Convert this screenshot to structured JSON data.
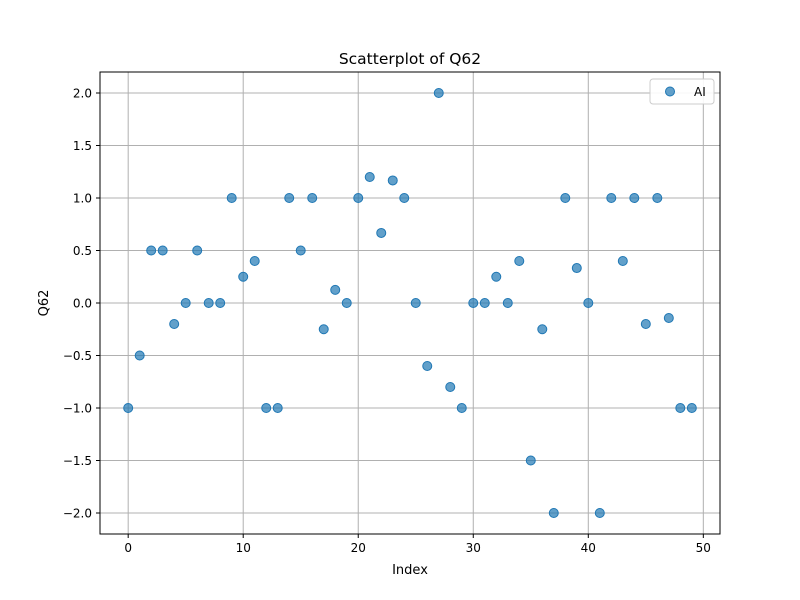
{
  "chart_data": {
    "type": "scatter",
    "title": "Scatterplot of Q62",
    "xlabel": "Index",
    "ylabel": "Q62",
    "xlim": [
      -2.45,
      51.45
    ],
    "ylim": [
      -2.2,
      2.2
    ],
    "grid": true,
    "legend_position": "top-right",
    "x_ticks": [
      0,
      10,
      20,
      30,
      40,
      50
    ],
    "y_ticks": [
      -2.0,
      -1.5,
      -1.0,
      -0.5,
      0.0,
      0.5,
      1.0,
      1.5,
      2.0
    ],
    "x_tick_labels": [
      "0",
      "10",
      "20",
      "30",
      "40",
      "50"
    ],
    "y_tick_labels": [
      "−2.0",
      "−1.5",
      "−1.0",
      "−0.5",
      "0.0",
      "0.5",
      "1.0",
      "1.5",
      "2.0"
    ],
    "marker_color": "#1f77b4",
    "series": [
      {
        "name": "AI",
        "x": [
          0,
          1,
          2,
          3,
          4,
          5,
          6,
          7,
          8,
          9,
          10,
          11,
          12,
          13,
          14,
          15,
          16,
          17,
          18,
          19,
          20,
          21,
          22,
          23,
          24,
          25,
          26,
          27,
          28,
          29,
          30,
          31,
          32,
          33,
          34,
          35,
          36,
          37,
          38,
          39,
          40,
          41,
          42,
          43,
          44,
          45,
          46,
          47,
          48,
          49
        ],
        "y": [
          -1.0,
          -0.5,
          0.5,
          0.5,
          -0.2,
          0.0,
          0.5,
          0.0,
          0.0,
          1.0,
          0.25,
          0.4,
          -1.0,
          -1.0,
          1.0,
          0.5,
          1.0,
          -0.25,
          0.125,
          0.0,
          1.0,
          1.2,
          0.667,
          1.167,
          1.0,
          0.0,
          -0.6,
          2.0,
          -0.8,
          -1.0,
          0.0,
          0.0,
          0.25,
          0.0,
          0.4,
          -1.5,
          -0.25,
          -2.0,
          1.0,
          0.333,
          0.0,
          -2.0,
          1.0,
          0.4,
          1.0,
          -0.2,
          1.0,
          -0.143,
          -1.0,
          -1.0
        ]
      }
    ]
  }
}
